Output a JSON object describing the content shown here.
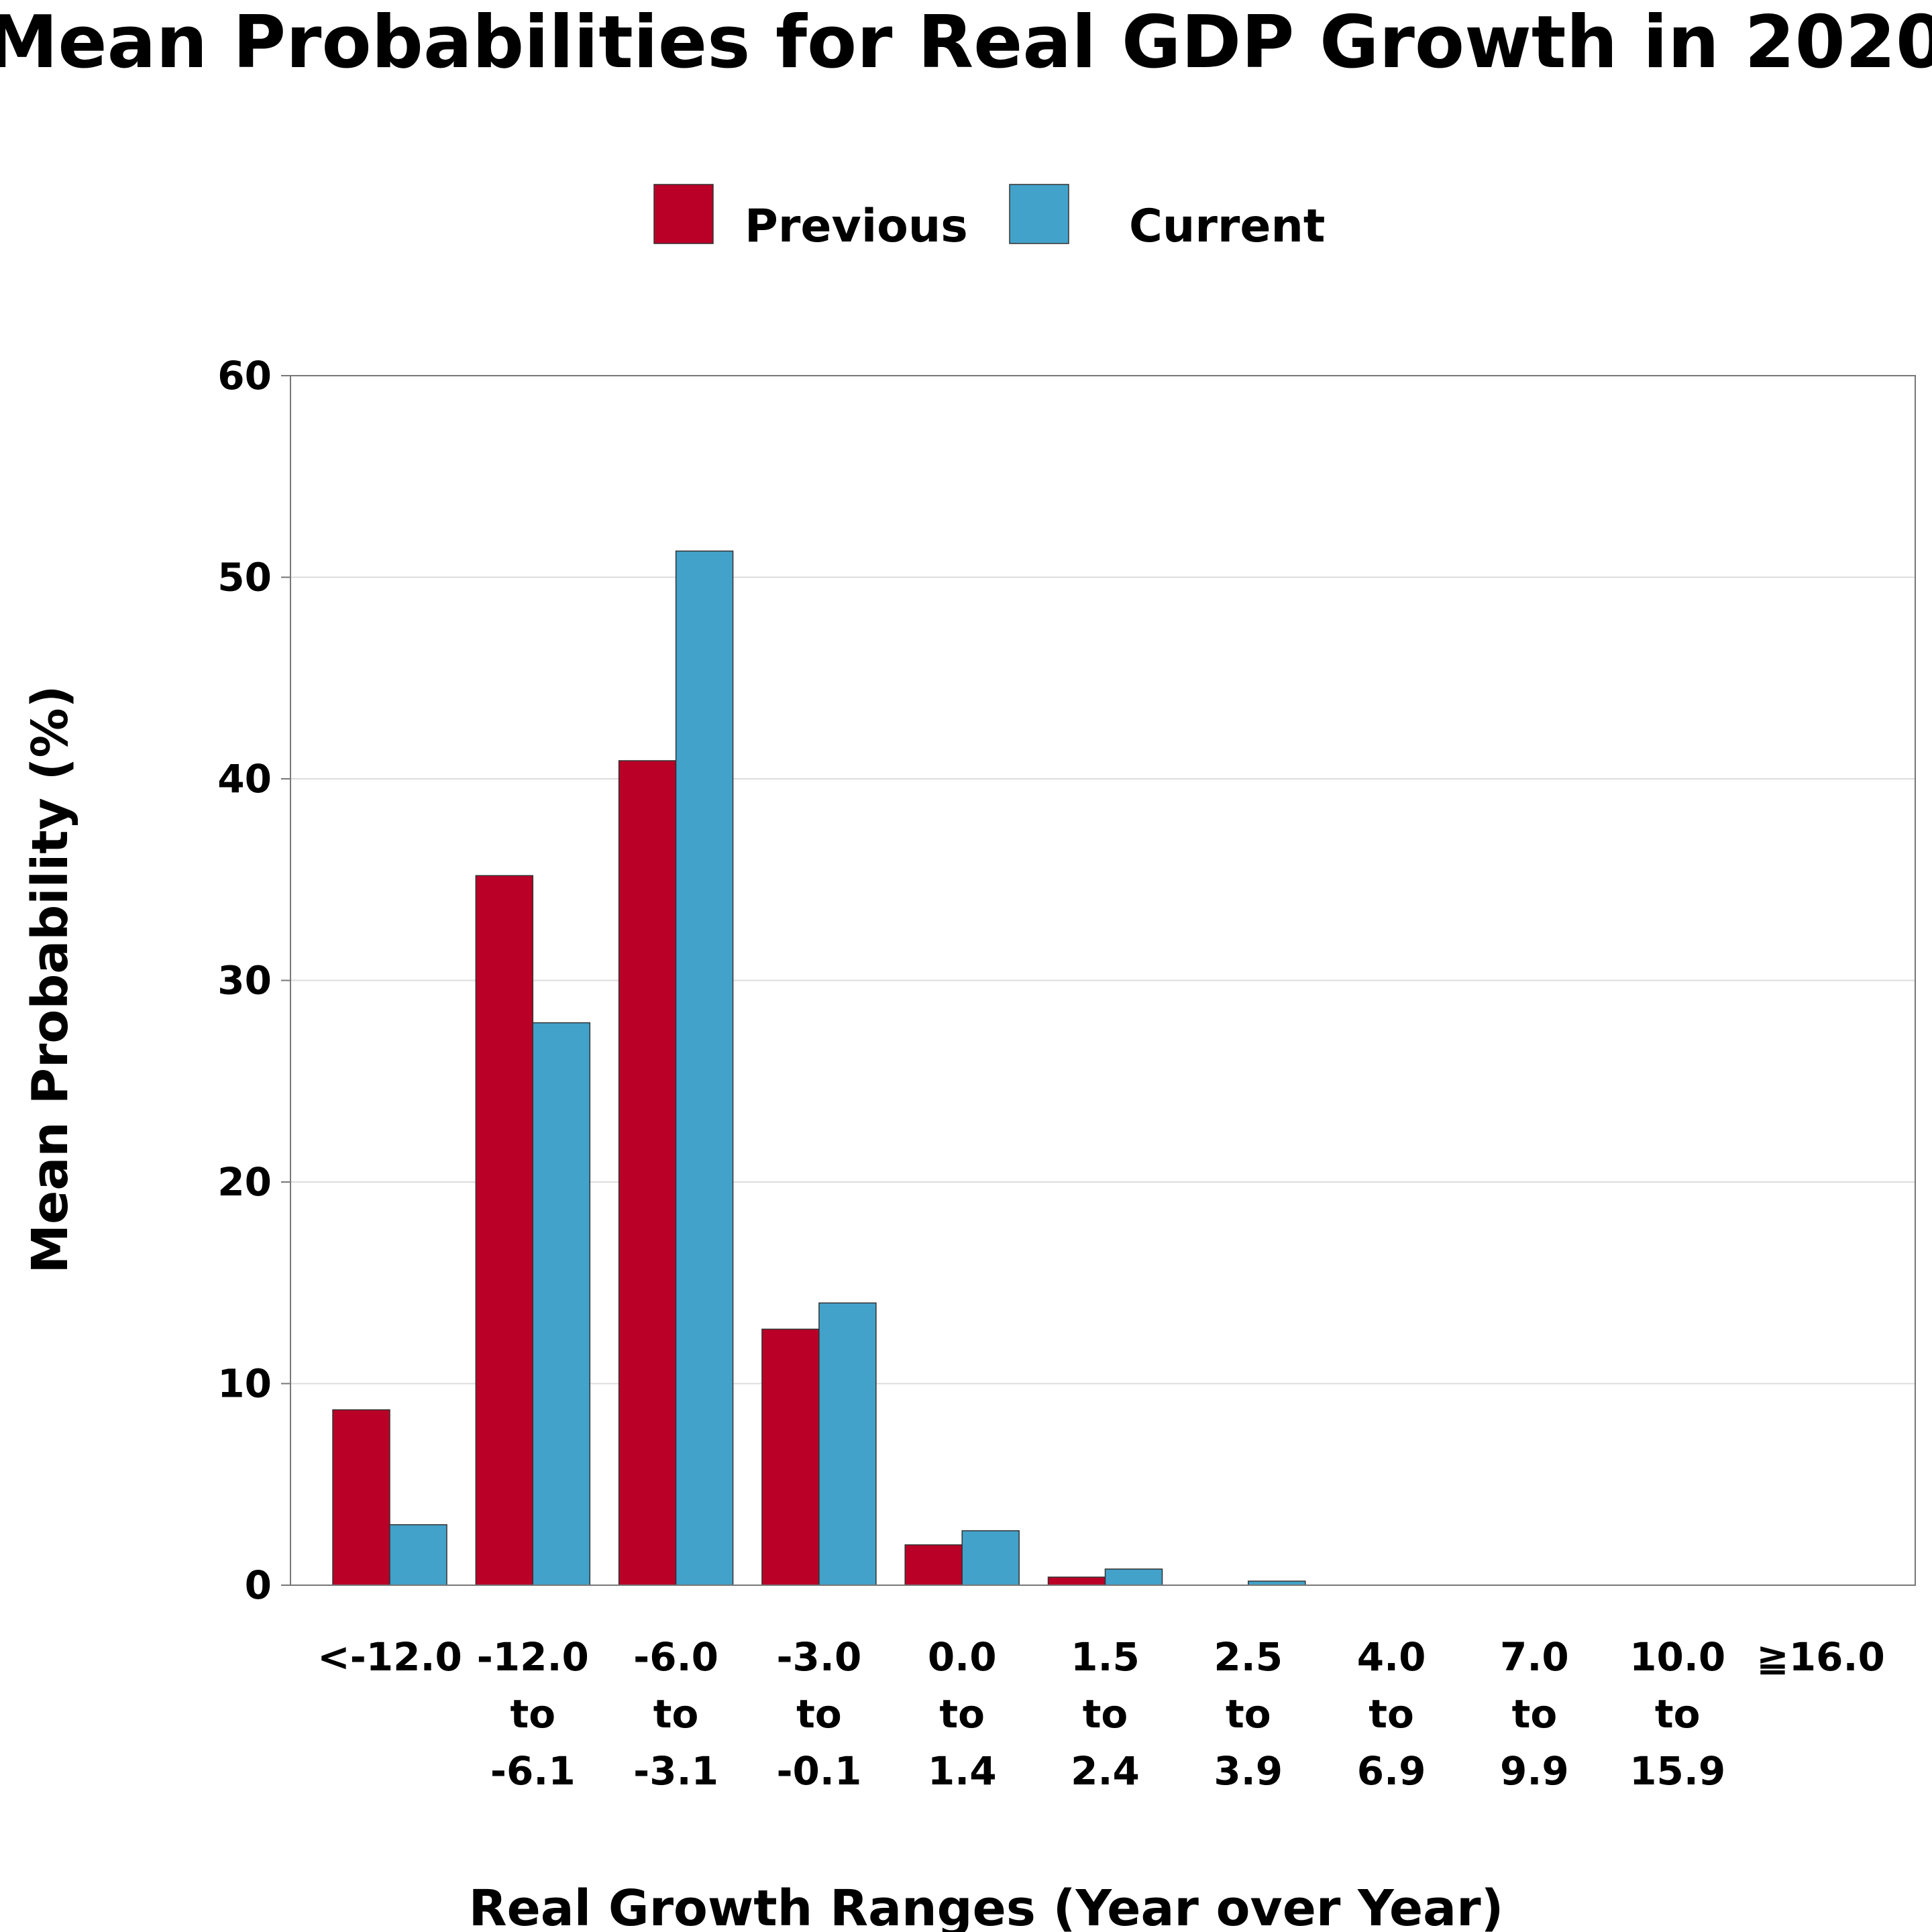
{
  "chart_data": {
    "type": "bar",
    "title": "Mean Probabilities for Real GDP Growth in 2020",
    "xlabel": "Real Growth Ranges (Year over Year)",
    "ylabel": "Mean Probability (%)",
    "ylim": [
      0,
      60
    ],
    "yticks": [
      0,
      10,
      20,
      30,
      40,
      50,
      60
    ],
    "grid": "horizontal",
    "legend_position": "top-center",
    "categories": [
      [
        "<-12.0"
      ],
      [
        "-12.0",
        "to",
        "-6.1"
      ],
      [
        "-6.0",
        "to",
        "-3.1"
      ],
      [
        "-3.0",
        "to",
        "-0.1"
      ],
      [
        "0.0",
        "to",
        "1.4"
      ],
      [
        "1.5",
        "to",
        "2.4"
      ],
      [
        "2.5",
        "to",
        "3.9"
      ],
      [
        "4.0",
        "to",
        "6.9"
      ],
      [
        "7.0",
        "to",
        "9.9"
      ],
      [
        "10.0",
        "to",
        "15.9"
      ],
      [
        "≧16.0"
      ]
    ],
    "series": [
      {
        "name": "Previous",
        "color": "#BA0027",
        "values": [
          8.7,
          35.2,
          40.9,
          12.7,
          2.0,
          0.4,
          0.0,
          0.0,
          0.0,
          0.0,
          0.0
        ]
      },
      {
        "name": "Current",
        "color": "#43A2CA",
        "values": [
          3.0,
          27.9,
          51.3,
          14.0,
          2.7,
          0.8,
          0.2,
          0.0,
          0.0,
          0.0,
          0.0
        ]
      }
    ]
  }
}
